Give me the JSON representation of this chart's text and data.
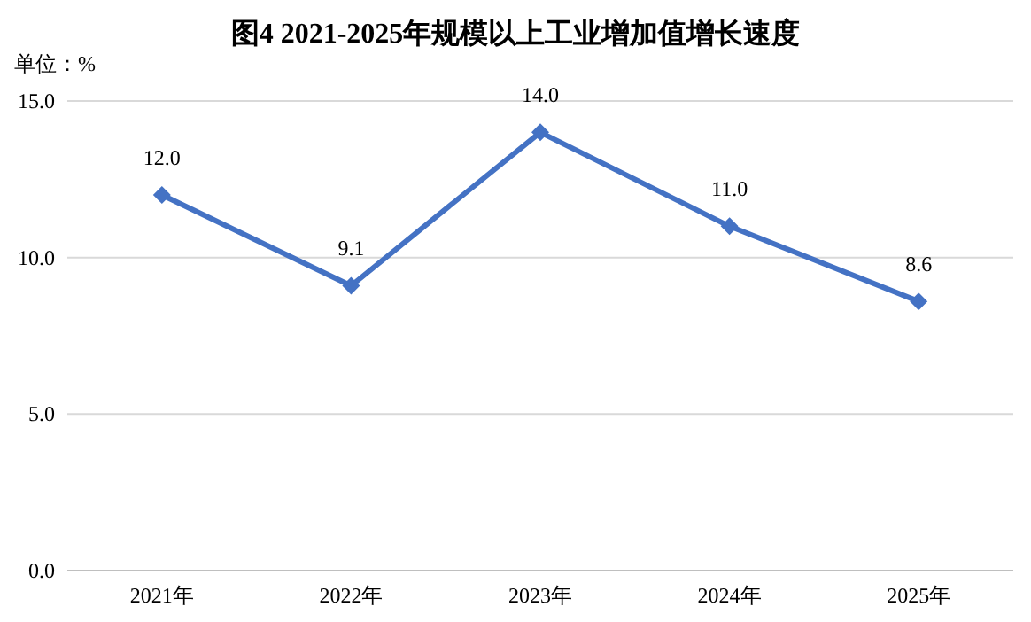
{
  "chart_data": {
    "type": "line",
    "title": "图4 2021-2025年规模以上工业增加值增长速度",
    "ylabel": "单位：%",
    "categories": [
      "2021年",
      "2022年",
      "2023年",
      "2024年",
      "2025年"
    ],
    "series": [
      {
        "color": "#4472c4",
        "values": [
          12.0,
          9.1,
          14.0,
          11.0,
          8.6
        ],
        "value_labels": [
          "12.0",
          "9.1",
          "14.0",
          "11.0",
          "8.6"
        ]
      }
    ],
    "ylim": [
      0,
      15
    ],
    "yticks": [
      {
        "value": 0,
        "label": "0.0"
      },
      {
        "value": 5,
        "label": "5.0"
      },
      {
        "value": 10,
        "label": "10.0"
      },
      {
        "value": 15,
        "label": "15.0"
      }
    ],
    "grid": "y",
    "marker": "diamond",
    "line_style": "solid"
  }
}
